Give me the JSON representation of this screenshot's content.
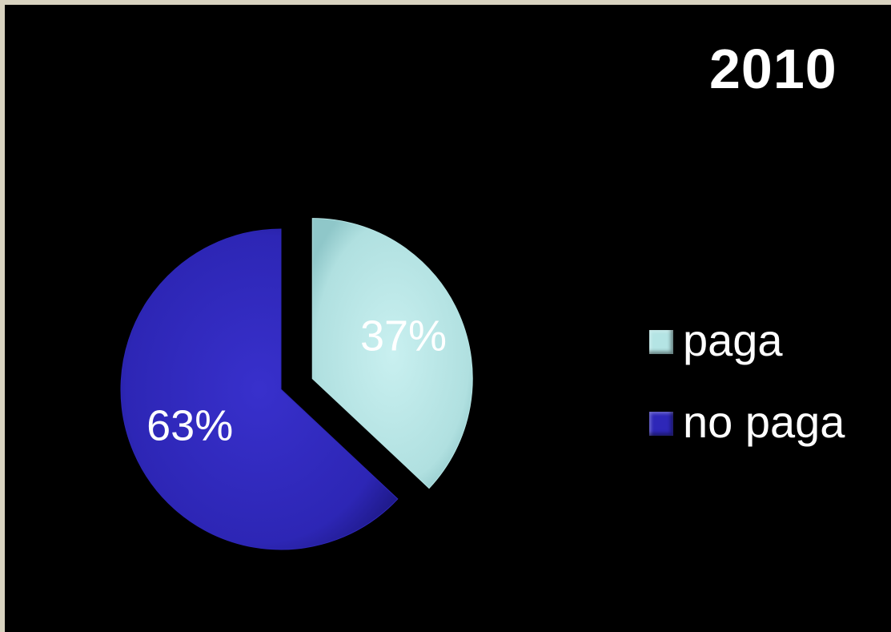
{
  "chart_data": {
    "type": "pie",
    "title": "2010",
    "slices": [
      {
        "label": "paga",
        "value": 37,
        "display": "37%",
        "color": "#b4e4e4",
        "exploded": true
      },
      {
        "label": "no paga",
        "value": 63,
        "display": "63%",
        "color": "#2e27b8",
        "exploded": false
      }
    ],
    "legend_position": "right"
  }
}
